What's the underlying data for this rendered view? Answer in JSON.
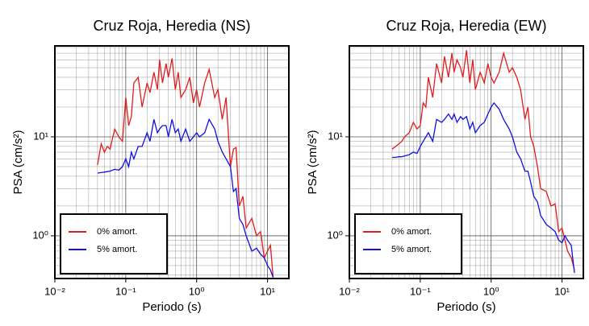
{
  "chart_data": [
    {
      "type": "line",
      "title": "Cruz Roja, Heredia (NS)",
      "xlabel": "Periodo (s)",
      "ylabel": "PSA (cm/s²)",
      "log_x": true,
      "log_y": true,
      "grid": true,
      "legend": "lower left",
      "xlim": [
        0.01,
        20
      ],
      "ylim": [
        0.37,
        83
      ],
      "xticks": [
        {
          "value": 0.01,
          "label": "10⁻²"
        },
        {
          "value": 0.1,
          "label": "10⁻¹"
        },
        {
          "value": 1,
          "label": "10⁰"
        },
        {
          "value": 10,
          "label": "10¹"
        }
      ],
      "yticks": [
        {
          "value": 1,
          "label": "10⁰"
        },
        {
          "value": 10,
          "label": "10¹"
        }
      ],
      "xminor": [
        0.02,
        0.03,
        0.04,
        0.05,
        0.06,
        0.07,
        0.08,
        0.09,
        0.2,
        0.3,
        0.4,
        0.5,
        0.6,
        0.7,
        0.8,
        0.9,
        2,
        3,
        4,
        5,
        6,
        7,
        8,
        9
      ],
      "yminor": [
        0.4,
        0.5,
        0.6,
        0.7,
        0.8,
        0.9,
        2,
        3,
        4,
        5,
        6,
        7,
        8,
        9,
        20,
        30,
        40,
        50,
        60,
        70,
        80
      ],
      "x": [
        0.04,
        0.045,
        0.05,
        0.055,
        0.06,
        0.07,
        0.08,
        0.09,
        0.1,
        0.11,
        0.12,
        0.13,
        0.15,
        0.17,
        0.2,
        0.22,
        0.25,
        0.28,
        0.3,
        0.33,
        0.37,
        0.4,
        0.45,
        0.5,
        0.55,
        0.6,
        0.7,
        0.8,
        0.9,
        1.0,
        1.1,
        1.3,
        1.5,
        1.8,
        2.0,
        2.3,
        2.6,
        3.0,
        3.3,
        3.6,
        4.0,
        4.5,
        5,
        6,
        7,
        8,
        9,
        10,
        11,
        12
      ],
      "series": [
        {
          "name": "0% amort.",
          "color": "#e41a1c",
          "values": [
            5.2,
            8.5,
            7,
            8,
            7.5,
            12,
            10,
            9,
            25,
            13,
            16,
            35,
            40,
            20,
            35,
            28,
            45,
            30,
            60,
            35,
            55,
            40,
            62,
            30,
            45,
            25,
            30,
            40,
            22,
            30,
            20,
            35,
            48,
            25,
            30,
            15,
            25,
            5,
            7.5,
            7.8,
            2,
            2.5,
            1.2,
            1.5,
            1,
            1.1,
            0.6,
            0.7,
            0.8,
            0.38
          ]
        },
        {
          "name": "5% amort.",
          "color": "#1010e0",
          "values": [
            4.3,
            4.35,
            4.4,
            4.45,
            4.5,
            4.7,
            4.6,
            5,
            6,
            5,
            7,
            6,
            8,
            8,
            11,
            9,
            15,
            11,
            12,
            13,
            13,
            10,
            15,
            11,
            12,
            9,
            12,
            9,
            10,
            11,
            10,
            11,
            15,
            12,
            9,
            7,
            6,
            5,
            2.8,
            3,
            1.5,
            1.3,
            1,
            0.7,
            0.75,
            0.65,
            0.6,
            0.5,
            0.45,
            0.38
          ]
        }
      ]
    },
    {
      "type": "line",
      "title": "Cruz Roja, Heredia (EW)",
      "xlabel": "Periodo (s)",
      "ylabel": "PSA (cm/s²)",
      "log_x": true,
      "log_y": true,
      "grid": true,
      "legend": "lower left",
      "xlim": [
        0.01,
        20
      ],
      "ylim": [
        0.37,
        83
      ],
      "xticks": [
        {
          "value": 0.01,
          "label": "10⁻²"
        },
        {
          "value": 0.1,
          "label": "10⁻¹"
        },
        {
          "value": 1,
          "label": "10⁰"
        },
        {
          "value": 10,
          "label": "10¹"
        }
      ],
      "yticks": [
        {
          "value": 1,
          "label": "10⁰"
        },
        {
          "value": 10,
          "label": "10¹"
        }
      ],
      "xminor": [
        0.02,
        0.03,
        0.04,
        0.05,
        0.06,
        0.07,
        0.08,
        0.09,
        0.2,
        0.3,
        0.4,
        0.5,
        0.6,
        0.7,
        0.8,
        0.9,
        2,
        3,
        4,
        5,
        6,
        7,
        8,
        9
      ],
      "yminor": [
        0.4,
        0.5,
        0.6,
        0.7,
        0.8,
        0.9,
        2,
        3,
        4,
        5,
        6,
        7,
        8,
        9,
        20,
        30,
        40,
        50,
        60,
        70,
        80
      ],
      "x": [
        0.04,
        0.045,
        0.05,
        0.055,
        0.06,
        0.07,
        0.08,
        0.09,
        0.1,
        0.11,
        0.12,
        0.13,
        0.15,
        0.17,
        0.2,
        0.22,
        0.25,
        0.28,
        0.3,
        0.33,
        0.37,
        0.4,
        0.45,
        0.5,
        0.55,
        0.6,
        0.7,
        0.8,
        0.9,
        1.0,
        1.1,
        1.3,
        1.5,
        1.8,
        2.0,
        2.3,
        2.6,
        3.0,
        3.3,
        3.6,
        4.0,
        4.5,
        5,
        6,
        7,
        8,
        9,
        10,
        11,
        12,
        13.5,
        15
      ],
      "series": [
        {
          "name": "0% amort.",
          "color": "#e41a1c",
          "values": [
            7.5,
            8,
            8.5,
            9,
            10,
            11,
            14,
            12,
            13,
            22,
            20,
            40,
            25,
            55,
            35,
            65,
            40,
            70,
            45,
            60,
            50,
            40,
            75,
            35,
            60,
            30,
            45,
            35,
            55,
            40,
            35,
            45,
            70,
            45,
            50,
            40,
            30,
            15,
            20,
            10,
            8,
            5,
            3,
            2.8,
            2,
            2.1,
            1.1,
            1.2,
            0.9,
            0.7,
            0.6,
            0.45
          ]
        },
        {
          "name": "5% amort.",
          "color": "#1010e0",
          "values": [
            6.2,
            6.2,
            6.3,
            6.3,
            6.4,
            6.6,
            7,
            6.8,
            8,
            9,
            10,
            11,
            9,
            15,
            14,
            15,
            17,
            15,
            17,
            14,
            16,
            15,
            16,
            12,
            14,
            11,
            13,
            14,
            17,
            20,
            22,
            19,
            15,
            12,
            10,
            7,
            6,
            4.5,
            4.5,
            3.5,
            2.5,
            2.2,
            1.6,
            1.3,
            1.2,
            1.1,
            0.9,
            0.85,
            1,
            0.9,
            0.8,
            0.42
          ]
        }
      ]
    }
  ]
}
